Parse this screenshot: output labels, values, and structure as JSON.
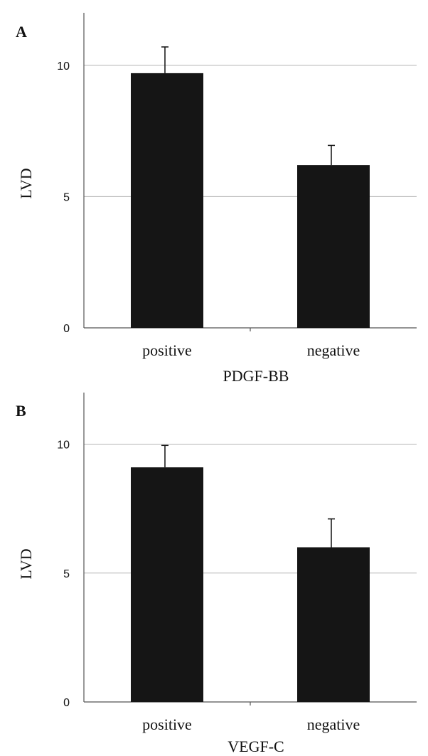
{
  "chart_data": [
    {
      "type": "bar",
      "panel": "A",
      "categories": [
        "positive",
        "negative"
      ],
      "values": [
        9.7,
        6.2
      ],
      "errors": [
        1.0,
        0.75
      ],
      "xlabel": "PDGF-BB",
      "ylabel": "LVD",
      "ylim": [
        0,
        12
      ],
      "yticks": [
        0,
        5,
        10
      ],
      "grid": true,
      "bar_color": "#151515"
    },
    {
      "type": "bar",
      "panel": "B",
      "categories": [
        "positive",
        "negative"
      ],
      "values": [
        9.1,
        6.0
      ],
      "errors": [
        0.85,
        1.1
      ],
      "xlabel": "VEGF-C",
      "ylabel": "LVD",
      "ylim": [
        0,
        12
      ],
      "yticks": [
        0,
        5,
        10
      ],
      "grid": true,
      "bar_color": "#151515"
    }
  ]
}
